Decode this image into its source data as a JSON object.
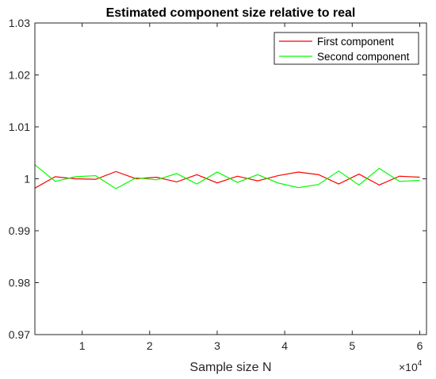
{
  "chart_data": {
    "type": "line",
    "title": "Estimated component size relative to real",
    "xlabel": "Sample size N",
    "ylabel": "",
    "x_exponent_label": "×10",
    "x_exponent_power": "4",
    "xlim": [
      0.3,
      6.1
    ],
    "ylim": [
      0.97,
      1.03
    ],
    "xticks": [
      1,
      2,
      3,
      4,
      5,
      6
    ],
    "xtick_labels": [
      "1",
      "2",
      "3",
      "4",
      "5",
      "6"
    ],
    "yticks": [
      0.97,
      0.98,
      0.99,
      1.0,
      1.01,
      1.02,
      1.03
    ],
    "ytick_labels": [
      "0.97",
      "0.98",
      "0.99",
      "1",
      "1.01",
      "1.02",
      "1.03"
    ],
    "grid": false,
    "legend_position": "top-right",
    "x": [
      0.3,
      0.6,
      0.9,
      1.2,
      1.5,
      1.8,
      2.1,
      2.4,
      2.7,
      3.0,
      3.3,
      3.6,
      3.9,
      4.2,
      4.5,
      4.8,
      5.1,
      5.4,
      5.7,
      6.0
    ],
    "series": [
      {
        "name": "First component",
        "color": "#ff0000",
        "values": [
          0.9982,
          1.0004,
          1.0,
          0.9999,
          1.0014,
          1.0,
          1.0003,
          0.9994,
          1.0008,
          0.9992,
          1.0005,
          0.9996,
          1.0006,
          1.0013,
          1.0008,
          0.999,
          1.0009,
          0.9988,
          1.0005,
          1.0003
        ]
      },
      {
        "name": "Second component",
        "color": "#00ff00",
        "values": [
          1.0027,
          0.9995,
          1.0004,
          1.0006,
          0.9981,
          1.0002,
          0.9998,
          1.001,
          0.999,
          1.0013,
          0.9993,
          1.0008,
          0.9992,
          0.9983,
          0.9989,
          1.0015,
          0.9988,
          1.002,
          0.9995,
          0.9997
        ]
      }
    ]
  }
}
